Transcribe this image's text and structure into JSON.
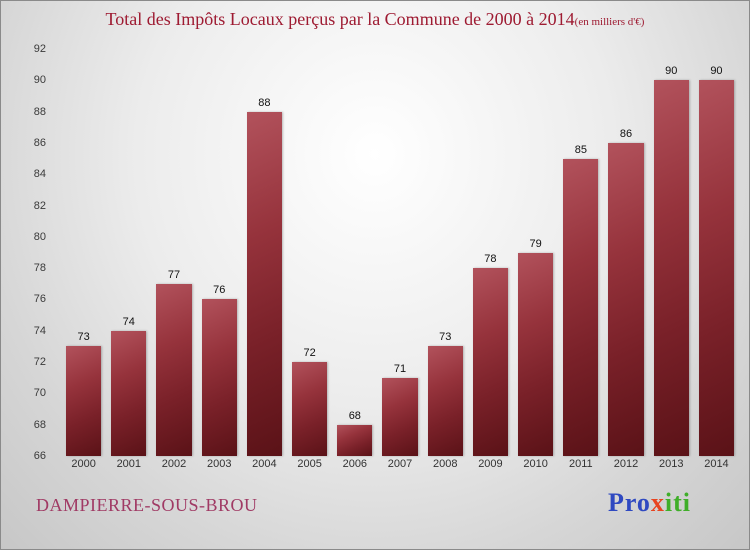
{
  "header": {
    "title": "Total des Impôts Locaux perçus par la Commune de 2000 à 2014",
    "subtitle": "(en milliers d'€)"
  },
  "footer": {
    "commune": "DAMPIERRE-SOUS-BROU",
    "logo": {
      "pro": "Pro",
      "x": "x",
      "iti": "iti"
    }
  },
  "colors": {
    "title_text": "#9e1b32",
    "commune_text": "#a03a64",
    "bar_top": "#b2525c",
    "bar_bottom": "#5a1217",
    "logo_blue": "#2f49c1",
    "logo_orange": "#e8431f",
    "logo_green": "#3fae29"
  },
  "chart_data": {
    "type": "bar",
    "title": "Total des Impôts Locaux perçus par la Commune de 2000 à 2014 (en milliers d'€)",
    "categories": [
      "2000",
      "2001",
      "2002",
      "2003",
      "2004",
      "2005",
      "2006",
      "2007",
      "2008",
      "2009",
      "2010",
      "2011",
      "2012",
      "2013",
      "2014"
    ],
    "values": [
      73,
      74,
      77,
      76,
      88,
      72,
      68,
      71,
      73,
      78,
      79,
      85,
      86,
      90,
      90
    ],
    "xlabel": "",
    "ylabel": "",
    "ylim": [
      66,
      92
    ],
    "yticks": [
      66,
      68,
      70,
      72,
      74,
      76,
      78,
      80,
      82,
      84,
      86,
      88,
      90,
      92
    ],
    "grid": false,
    "legend": false
  }
}
